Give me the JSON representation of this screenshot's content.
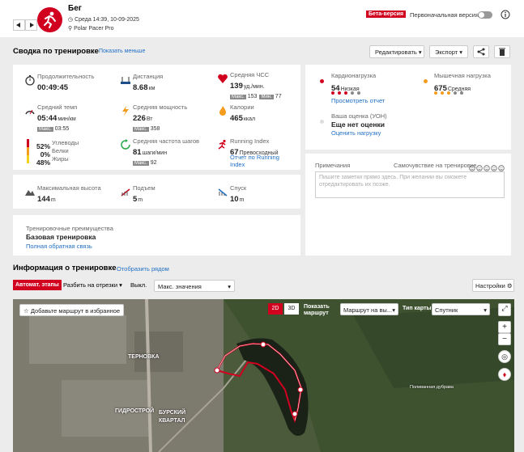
{
  "header": {
    "title": "Бег",
    "datetime": "Среда 14:39, 10-09-2025",
    "device": "Polar Pacer Pro",
    "beta_badge": "Бета-версия",
    "original_version": "Первоначальная версия"
  },
  "summary": {
    "title": "Сводка по тренировке",
    "toggle_link": "Показать меньше",
    "edit_button": "Редактировать",
    "export_button": "Экспорт",
    "stats": [
      {
        "label": "Продолжительность",
        "value": "00:49:45"
      },
      {
        "label": "Дистанция",
        "value": "8.68",
        "unit": "км"
      },
      {
        "label": "Средняя ЧСС",
        "value": "139",
        "unit": "уд./мин.",
        "sub": [
          {
            "label": "Макс.",
            "value": "153"
          },
          {
            "label": "Мин.",
            "value": "77"
          }
        ]
      },
      {
        "label": "Средний темп",
        "value": "05:44",
        "unit": "мин/км",
        "sub": [
          {
            "label": "Макс.",
            "value": "03:55"
          }
        ]
      },
      {
        "label": "Средняя мощность",
        "value": "226",
        "unit": "Вт",
        "sub": [
          {
            "label": "Макс.",
            "value": "358"
          }
        ]
      },
      {
        "label": "Калории",
        "value": "465",
        "unit": "ккал"
      },
      {
        "label": "Средняя частота шагов",
        "value": "81",
        "unit": "шаги/мин",
        "sub": [
          {
            "label": "Макс.",
            "value": "92"
          }
        ]
      },
      {
        "label": "Running Index",
        "value": "67",
        "unit": "Превосходный",
        "link": "Отчет по Running Index"
      }
    ],
    "fuel": [
      {
        "value": "52%",
        "label": "Углеводы"
      },
      {
        "value": "0%",
        "label": "Белки"
      },
      {
        "value": "48%",
        "label": "Жиры"
      }
    ],
    "elevation": [
      {
        "label": "Максимальная высота",
        "value": "144",
        "unit": "m"
      },
      {
        "label": "Подъем",
        "value": "5",
        "unit": "m"
      },
      {
        "label": "Спуск",
        "value": "10",
        "unit": "m"
      }
    ],
    "benefit": {
      "label": "Тренировочные преимущества",
      "value": "Базовая тренировка",
      "link": "Полная обратная связь"
    },
    "cardio": {
      "label": "Кардионагрузка",
      "value": "54",
      "level": "Низкая",
      "link": "Просмотреть отчет"
    },
    "muscle": {
      "label": "Мышечная нагрузка",
      "value": "675",
      "level": "Средняя"
    },
    "rpe": {
      "label": "Ваша оценка (УОН)",
      "value": "Еще нет оценки",
      "link": "Оценить нагрузку"
    },
    "notes": {
      "label": "Примечания",
      "feeling_label": "Самочувствие на тренировке",
      "placeholder": "Пишите заметки прямо здесь. При желании вы сможете отредактировать их позже."
    }
  },
  "details": {
    "title": "Информация о тренировке",
    "side_link": "Отобразить рядом",
    "auto_laps": "Автомат. этапы",
    "split_select": "Разбить на отрезки",
    "split_value": "Выкл.",
    "max_select": "Макс. значения",
    "settings": "Настройки"
  },
  "map": {
    "favorite": "Добавьте маршрут в избранное",
    "mode_2d": "2D",
    "mode_3d": "3D",
    "show_route": "Показать маршрут",
    "route_select": "Маршрут на вы...",
    "map_type_label": "Тип карты",
    "map_type": "Спутник",
    "places": [
      "ТЕРНОВКА",
      "ГИДРОСТРОЙ",
      "БУРСКИЙ КВАРТАЛ",
      "Поливанная дубрава"
    ]
  }
}
